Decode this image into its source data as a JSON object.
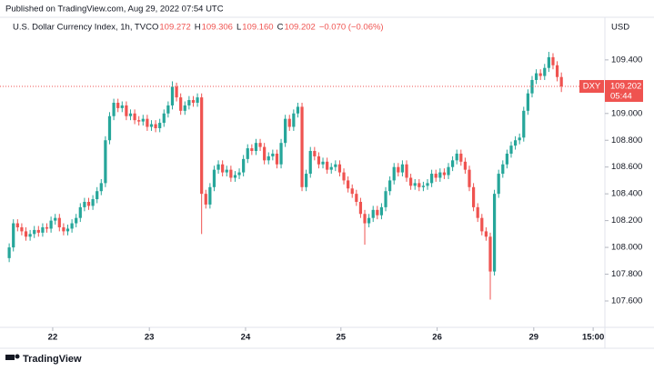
{
  "chart_data": {
    "type": "candlestick",
    "header": "Published on TradingView.com, Aug 29, 2022 07:54 UTC",
    "title": "U.S. Dollar Currency Index, 1h, TVC",
    "info": [
      {
        "key": "O",
        "value": "109.272"
      },
      {
        "key": "H",
        "value": "109.306"
      },
      {
        "key": "L",
        "value": "109.160"
      },
      {
        "key": "C",
        "value": "109.202"
      }
    ],
    "change": "−0.070 (−0.06%)",
    "unit": "USD",
    "price_tag": {
      "symbol": "DXY",
      "price": "109.202",
      "countdown": "05:44"
    },
    "footer": "TradingView",
    "up_color": "#26a69a",
    "down_color": "#ef5350",
    "x": [
      0,
      1,
      2,
      3,
      4,
      5,
      6,
      7,
      8,
      9,
      10,
      11,
      12,
      13,
      14,
      15,
      16,
      17,
      18,
      19,
      20,
      21,
      22,
      23,
      24,
      25,
      26,
      27,
      28,
      29,
      30,
      31,
      32,
      33,
      34,
      35,
      36,
      37,
      38,
      39,
      40,
      41,
      42,
      43,
      44,
      45,
      46,
      47,
      48,
      49,
      50,
      51,
      52,
      53,
      54,
      55,
      56,
      57,
      58,
      59,
      60,
      61,
      62,
      63,
      64,
      65,
      66,
      67,
      68,
      69,
      70,
      71,
      72,
      73,
      74,
      75,
      76,
      77,
      78,
      79,
      80,
      81,
      82,
      83,
      84,
      85,
      86,
      87,
      88,
      89,
      90,
      91,
      92,
      93,
      94,
      95,
      96,
      97,
      98,
      99,
      100,
      101,
      102,
      103,
      104,
      105,
      106,
      107,
      108,
      109,
      110,
      111,
      112,
      113,
      114,
      115,
      116,
      117,
      118,
      119,
      120,
      121,
      122,
      123,
      124,
      125,
      126,
      127,
      128,
      129,
      130,
      131,
      132
    ],
    "ohlc": [
      [
        107.92,
        108.03,
        107.89,
        108.0
      ],
      [
        108.0,
        108.21,
        107.97,
        108.18
      ],
      [
        108.18,
        108.21,
        108.12,
        108.15
      ],
      [
        108.15,
        108.18,
        108.09,
        108.12
      ],
      [
        108.12,
        108.15,
        108.05,
        108.08
      ],
      [
        108.08,
        108.13,
        108.05,
        108.1
      ],
      [
        108.1,
        108.16,
        108.07,
        108.13
      ],
      [
        108.13,
        108.16,
        108.08,
        108.11
      ],
      [
        108.11,
        108.18,
        108.08,
        108.15
      ],
      [
        108.15,
        108.18,
        108.11,
        108.14
      ],
      [
        108.14,
        108.23,
        108.11,
        108.2
      ],
      [
        108.2,
        108.25,
        108.17,
        108.22
      ],
      [
        108.22,
        108.25,
        108.12,
        108.15
      ],
      [
        108.15,
        108.18,
        108.09,
        108.12
      ],
      [
        108.12,
        108.17,
        108.09,
        108.14
      ],
      [
        108.14,
        108.21,
        108.11,
        108.18
      ],
      [
        108.18,
        108.25,
        108.15,
        108.22
      ],
      [
        108.22,
        108.33,
        108.19,
        108.3
      ],
      [
        108.3,
        108.37,
        108.27,
        108.34
      ],
      [
        108.34,
        108.37,
        108.28,
        108.31
      ],
      [
        108.31,
        108.39,
        108.28,
        108.36
      ],
      [
        108.36,
        108.45,
        108.33,
        108.42
      ],
      [
        108.42,
        108.51,
        108.39,
        108.48
      ],
      [
        108.48,
        108.83,
        108.45,
        108.8
      ],
      [
        108.8,
        109.01,
        108.77,
        108.98
      ],
      [
        108.98,
        109.11,
        108.95,
        109.08
      ],
      [
        109.08,
        109.11,
        109.01,
        109.04
      ],
      [
        109.04,
        109.09,
        109.01,
        109.06
      ],
      [
        109.06,
        109.09,
        108.95,
        108.98
      ],
      [
        108.98,
        109.03,
        108.95,
        109.0
      ],
      [
        109.0,
        109.03,
        108.92,
        108.95
      ],
      [
        108.95,
        108.98,
        108.91,
        108.94
      ],
      [
        108.94,
        108.99,
        108.91,
        108.96
      ],
      [
        108.96,
        108.99,
        108.87,
        108.9
      ],
      [
        108.9,
        108.95,
        108.87,
        108.92
      ],
      [
        108.92,
        108.95,
        108.86,
        108.89
      ],
      [
        108.89,
        108.96,
        108.86,
        108.93
      ],
      [
        108.93,
        109.03,
        108.9,
        109.0
      ],
      [
        109.0,
        109.09,
        108.97,
        109.06
      ],
      [
        109.06,
        109.24,
        109.03,
        109.2
      ],
      [
        109.2,
        109.23,
        109.09,
        109.12
      ],
      [
        109.12,
        109.15,
        108.99,
        109.02
      ],
      [
        109.02,
        109.09,
        108.99,
        109.06
      ],
      [
        109.06,
        109.13,
        109.03,
        109.1
      ],
      [
        109.1,
        109.13,
        109.05,
        109.08
      ],
      [
        109.08,
        109.15,
        109.05,
        109.12
      ],
      [
        109.12,
        109.15,
        108.1,
        108.4
      ],
      [
        108.4,
        108.43,
        108.29,
        108.32
      ],
      [
        108.32,
        108.48,
        108.29,
        108.45
      ],
      [
        108.45,
        108.61,
        108.42,
        108.58
      ],
      [
        108.58,
        108.65,
        108.55,
        108.62
      ],
      [
        108.62,
        108.65,
        108.53,
        108.56
      ],
      [
        108.56,
        108.61,
        108.53,
        108.58
      ],
      [
        108.58,
        108.61,
        108.49,
        108.52
      ],
      [
        108.52,
        108.57,
        108.49,
        108.54
      ],
      [
        108.54,
        108.59,
        108.51,
        108.56
      ],
      [
        108.56,
        108.69,
        108.53,
        108.66
      ],
      [
        108.66,
        108.77,
        108.63,
        108.74
      ],
      [
        108.74,
        108.77,
        108.69,
        108.72
      ],
      [
        108.72,
        108.81,
        108.69,
        108.78
      ],
      [
        108.78,
        108.81,
        108.72,
        108.75
      ],
      [
        108.75,
        108.78,
        108.62,
        108.65
      ],
      [
        108.65,
        108.71,
        108.62,
        108.68
      ],
      [
        108.68,
        108.73,
        108.65,
        108.7
      ],
      [
        108.7,
        108.73,
        108.59,
        108.62
      ],
      [
        108.62,
        108.81,
        108.59,
        108.78
      ],
      [
        108.78,
        108.99,
        108.75,
        108.96
      ],
      [
        108.96,
        108.99,
        108.87,
        108.9
      ],
      [
        108.9,
        109.03,
        108.87,
        109.0
      ],
      [
        109.0,
        109.08,
        108.97,
        109.05
      ],
      [
        109.05,
        109.08,
        108.42,
        108.45
      ],
      [
        108.45,
        108.58,
        108.42,
        108.55
      ],
      [
        108.55,
        108.75,
        108.52,
        108.72
      ],
      [
        108.72,
        108.75,
        108.65,
        108.68
      ],
      [
        108.68,
        108.71,
        108.59,
        108.62
      ],
      [
        108.62,
        108.67,
        108.59,
        108.64
      ],
      [
        108.64,
        108.67,
        108.55,
        108.58
      ],
      [
        108.58,
        108.63,
        108.55,
        108.6
      ],
      [
        108.6,
        108.65,
        108.57,
        108.62
      ],
      [
        108.62,
        108.65,
        108.53,
        108.56
      ],
      [
        108.56,
        108.59,
        108.47,
        108.5
      ],
      [
        108.5,
        108.53,
        108.41,
        108.44
      ],
      [
        108.44,
        108.47,
        108.37,
        108.4
      ],
      [
        108.4,
        108.43,
        108.31,
        108.34
      ],
      [
        108.34,
        108.37,
        108.22,
        108.25
      ],
      [
        108.25,
        108.28,
        108.02,
        108.18
      ],
      [
        108.18,
        108.25,
        108.15,
        108.22
      ],
      [
        108.22,
        108.31,
        108.19,
        108.28
      ],
      [
        108.28,
        108.31,
        108.21,
        108.24
      ],
      [
        108.24,
        108.33,
        108.21,
        108.3
      ],
      [
        108.3,
        108.45,
        108.27,
        108.42
      ],
      [
        108.42,
        108.53,
        108.39,
        108.5
      ],
      [
        108.5,
        108.63,
        108.47,
        108.6
      ],
      [
        108.6,
        108.63,
        108.53,
        108.56
      ],
      [
        108.56,
        108.65,
        108.53,
        108.62
      ],
      [
        108.62,
        108.65,
        108.49,
        108.52
      ],
      [
        108.52,
        108.55,
        108.43,
        108.46
      ],
      [
        108.46,
        108.51,
        108.43,
        108.48
      ],
      [
        108.48,
        108.51,
        108.42,
        108.45
      ],
      [
        108.45,
        108.49,
        108.42,
        108.46
      ],
      [
        108.46,
        108.51,
        108.43,
        108.48
      ],
      [
        108.48,
        108.58,
        108.45,
        108.55
      ],
      [
        108.55,
        108.58,
        108.49,
        108.52
      ],
      [
        108.52,
        108.59,
        108.49,
        108.56
      ],
      [
        108.56,
        108.59,
        108.51,
        108.54
      ],
      [
        108.54,
        108.63,
        108.51,
        108.6
      ],
      [
        108.6,
        108.68,
        108.57,
        108.65
      ],
      [
        108.65,
        108.73,
        108.62,
        108.7
      ],
      [
        108.7,
        108.73,
        108.61,
        108.64
      ],
      [
        108.64,
        108.67,
        108.55,
        108.58
      ],
      [
        108.58,
        108.61,
        108.42,
        108.45
      ],
      [
        108.45,
        108.48,
        108.27,
        108.3
      ],
      [
        108.3,
        108.33,
        108.19,
        108.22
      ],
      [
        108.22,
        108.25,
        108.09,
        108.12
      ],
      [
        108.12,
        108.15,
        108.05,
        108.08
      ],
      [
        108.08,
        108.11,
        107.61,
        107.82
      ],
      [
        107.82,
        108.43,
        107.79,
        108.4
      ],
      [
        108.4,
        108.58,
        108.37,
        108.55
      ],
      [
        108.55,
        108.65,
        108.52,
        108.62
      ],
      [
        108.62,
        108.73,
        108.59,
        108.7
      ],
      [
        108.7,
        108.79,
        108.67,
        108.76
      ],
      [
        108.76,
        108.83,
        108.73,
        108.8
      ],
      [
        108.8,
        108.85,
        108.77,
        108.82
      ],
      [
        108.82,
        109.05,
        108.79,
        109.02
      ],
      [
        109.02,
        109.18,
        108.99,
        109.15
      ],
      [
        109.15,
        109.28,
        109.12,
        109.25
      ],
      [
        109.25,
        109.33,
        109.22,
        109.3
      ],
      [
        109.3,
        109.33,
        109.25,
        109.28
      ],
      [
        109.28,
        109.37,
        109.25,
        109.34
      ],
      [
        109.34,
        109.46,
        109.31,
        109.42
      ],
      [
        109.42,
        109.45,
        109.33,
        109.36
      ],
      [
        109.36,
        109.39,
        109.24,
        109.272
      ],
      [
        109.272,
        109.306,
        109.16,
        109.202
      ]
    ],
    "xlim": [
      -2.2,
      142.4
    ],
    "ylim": [
      107.403,
      109.725
    ],
    "xticks": [
      {
        "value": 10.4,
        "label": "22"
      },
      {
        "value": 33.5,
        "label": "23"
      },
      {
        "value": 56.5,
        "label": "24"
      },
      {
        "value": 79.3,
        "label": "25"
      },
      {
        "value": 102.3,
        "label": "26"
      },
      {
        "value": 125.4,
        "label": "29"
      },
      {
        "value": 139.6,
        "label": "15:00"
      }
    ],
    "yticks": [
      {
        "value": 107.6,
        "label": "107.600"
      },
      {
        "value": 107.8,
        "label": "107.800"
      },
      {
        "value": 108.0,
        "label": "108.000"
      },
      {
        "value": 108.2,
        "label": "108.200"
      },
      {
        "value": 108.4,
        "label": "108.400"
      },
      {
        "value": 108.6,
        "label": "108.600"
      },
      {
        "value": 108.8,
        "label": "108.800"
      },
      {
        "value": 109.0,
        "label": "109.000"
      },
      {
        "value": 109.2,
        "label": "109.200"
      },
      {
        "value": 109.4,
        "label": "109.400"
      }
    ]
  }
}
